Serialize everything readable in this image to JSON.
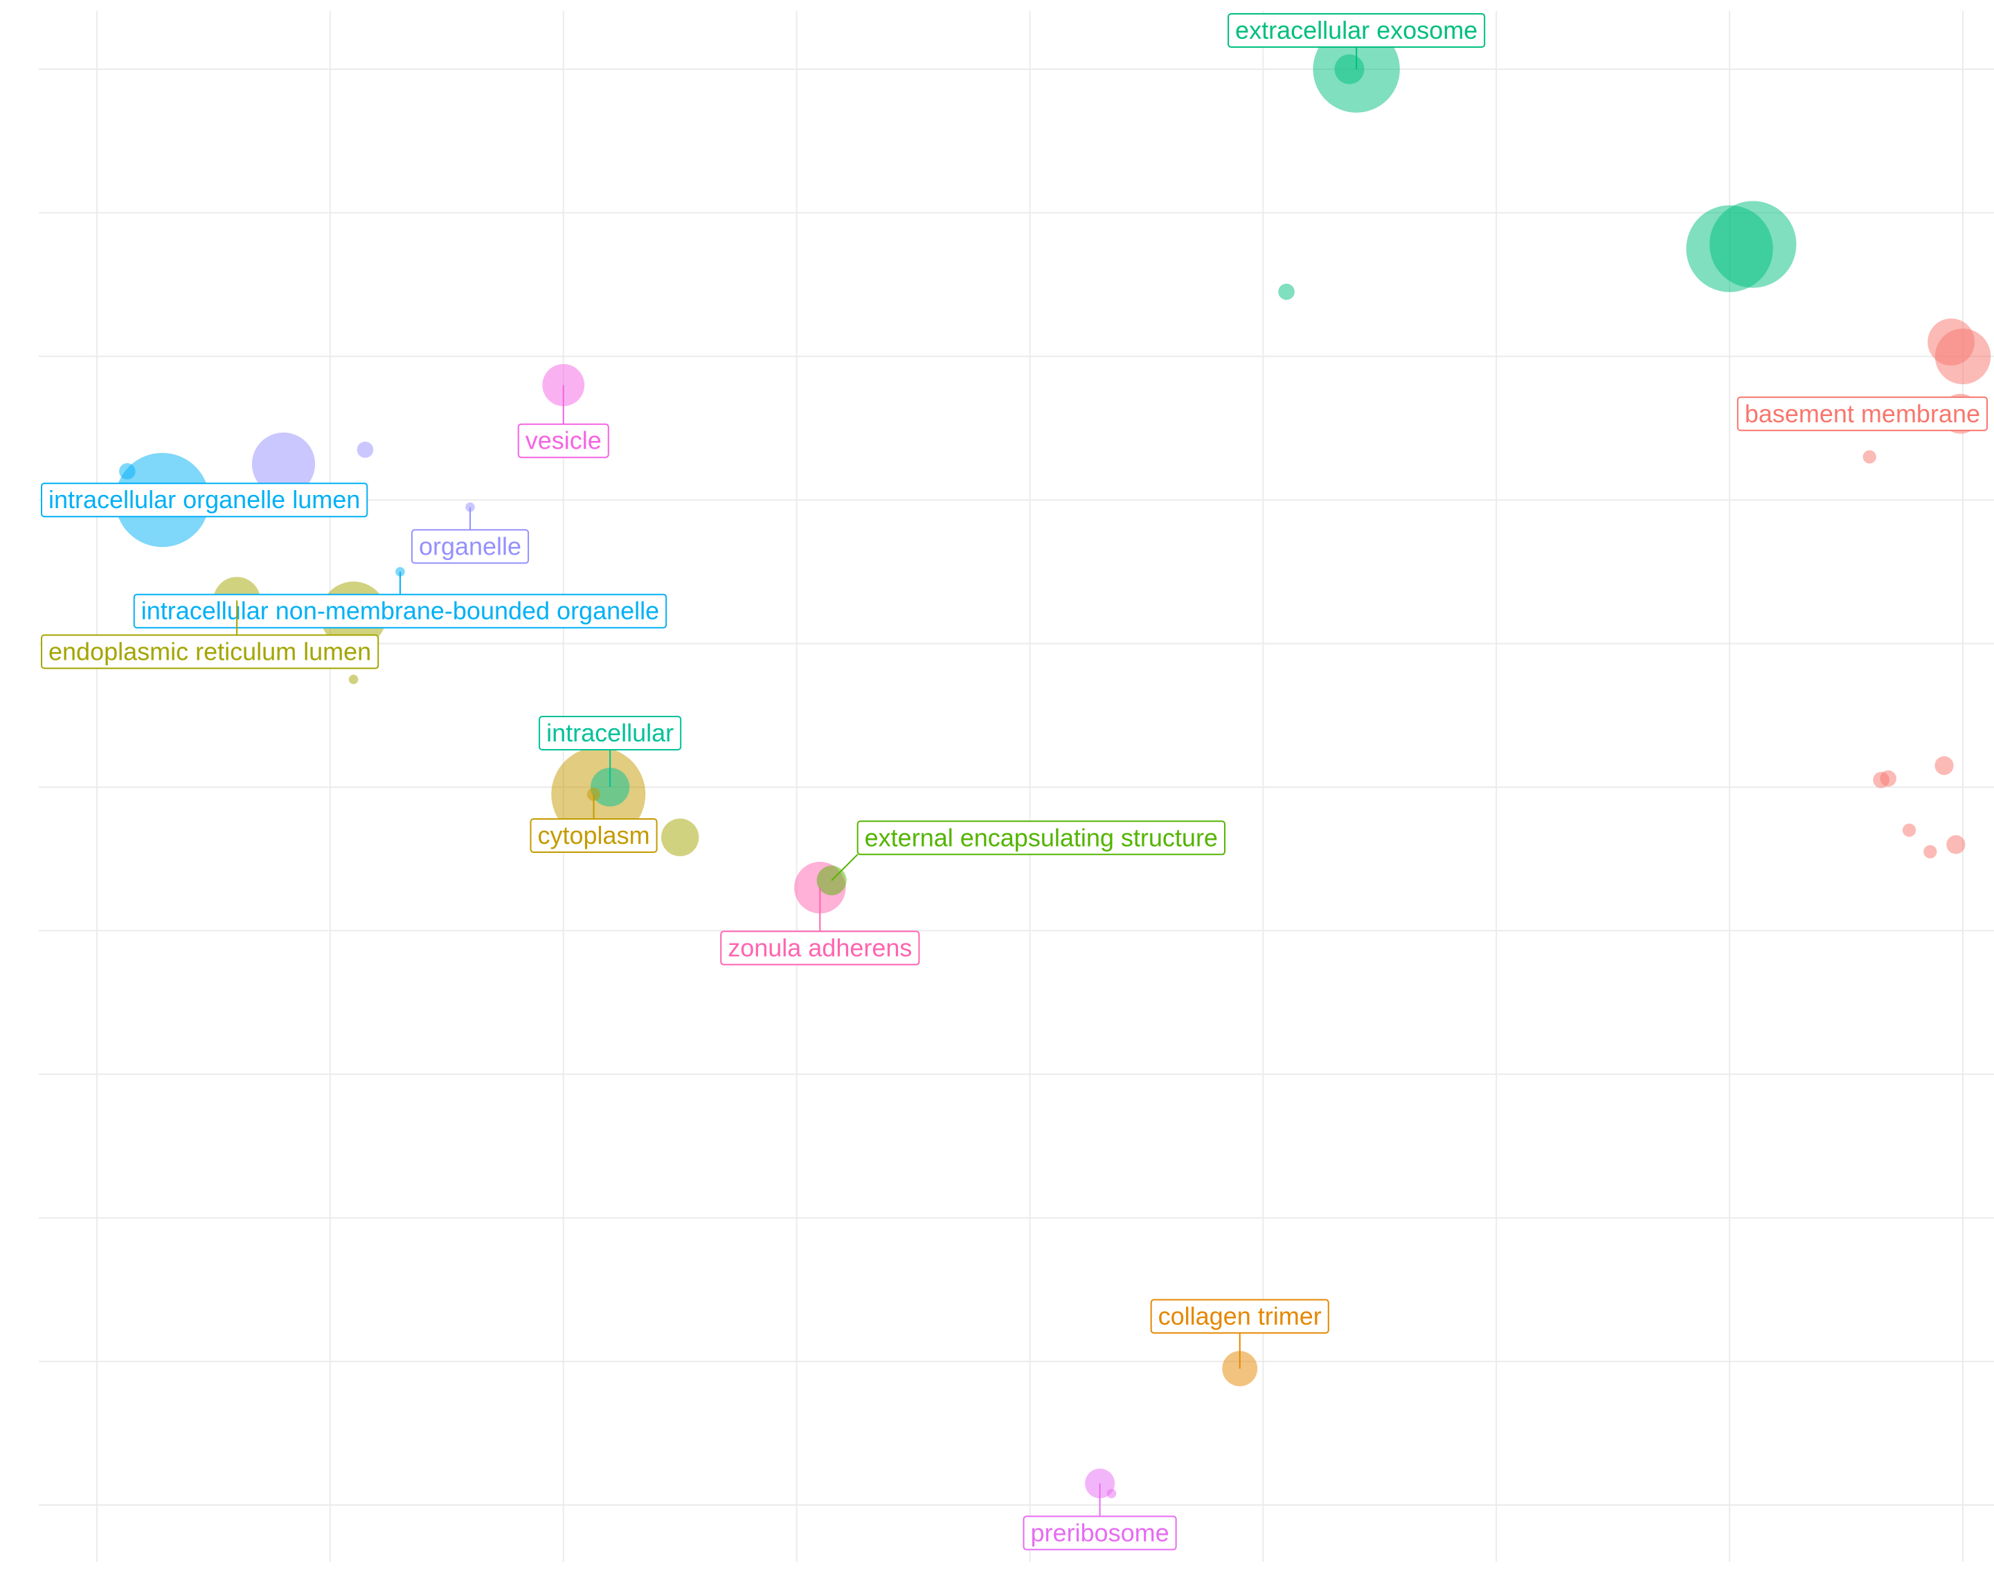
{
  "chart_data": {
    "type": "scatter",
    "title": "",
    "xlabel": "",
    "ylabel": "",
    "xlim": [
      0,
      8.5
    ],
    "ylim": [
      0,
      10.5
    ],
    "grid": true,
    "legend": "none",
    "labels": [
      "extracellular exosome",
      "vesicle",
      "organelle",
      "intracellular organelle lumen",
      "intracellular non-membrane-bounded organelle",
      "endoplasmic reticulum lumen",
      "basement membrane",
      "intracellular",
      "cytoplasm",
      "external encapsulating structure",
      "zonula adherens",
      "collagen trimer",
      "preribosome"
    ],
    "points": [
      {
        "x": 5.4,
        "y": 10.0,
        "size": 0.85,
        "color": "#00BF7D",
        "label": "extracellular exosome"
      },
      {
        "x": 5.37,
        "y": 10.0,
        "size": 0.1,
        "color": "#00BF7D"
      },
      {
        "x": 7.0,
        "y": 8.75,
        "size": 0.85,
        "color": "#00BF7D"
      },
      {
        "x": 7.1,
        "y": 8.78,
        "size": 0.85,
        "color": "#00BF7D"
      },
      {
        "x": 5.1,
        "y": 8.45,
        "size": 0.03,
        "color": "#00BF7D"
      },
      {
        "x": 2.0,
        "y": 7.8,
        "size": 0.2,
        "color": "#F564E3",
        "label": "vesicle"
      },
      {
        "x": 0.8,
        "y": 7.25,
        "size": 0.45,
        "color": "#9590FF"
      },
      {
        "x": 1.15,
        "y": 7.35,
        "size": 0.03,
        "color": "#9590FF"
      },
      {
        "x": 0.95,
        "y": 6.95,
        "size": 0.03,
        "color": "#9590FF"
      },
      {
        "x": 1.6,
        "y": 6.95,
        "size": 0.01,
        "color": "#9590FF",
        "label": "organelle"
      },
      {
        "x": 0.28,
        "y": 7.0,
        "size": 1.0,
        "color": "#00B0F6",
        "label": "intracellular organelle lumen"
      },
      {
        "x": 0.13,
        "y": 7.2,
        "size": 0.03,
        "color": "#00B0F6"
      },
      {
        "x": 1.3,
        "y": 6.5,
        "size": 0.01,
        "color": "#00B0F6",
        "label": "intracellular non-membrane-bounded organelle"
      },
      {
        "x": 0.6,
        "y": 6.3,
        "size": 0.25,
        "color": "#A3A500",
        "label": "endoplasmic reticulum lumen"
      },
      {
        "x": 1.1,
        "y": 6.2,
        "size": 0.5,
        "color": "#A3A500"
      },
      {
        "x": 1.1,
        "y": 5.75,
        "size": 0.01,
        "color": "#A3A500"
      },
      {
        "x": 7.95,
        "y": 8.1,
        "size": 0.25,
        "color": "#F8766D"
      },
      {
        "x": 8.0,
        "y": 8.0,
        "size": 0.35,
        "color": "#F8766D"
      },
      {
        "x": 7.99,
        "y": 7.6,
        "size": 0.18,
        "color": "#F8766D",
        "label": "basement membrane"
      },
      {
        "x": 7.6,
        "y": 7.3,
        "size": 0.02,
        "color": "#F8766D"
      },
      {
        "x": 7.65,
        "y": 5.05,
        "size": 0.03,
        "color": "#F8766D"
      },
      {
        "x": 7.68,
        "y": 5.06,
        "size": 0.03,
        "color": "#F8766D"
      },
      {
        "x": 7.92,
        "y": 5.15,
        "size": 0.04,
        "color": "#F8766D"
      },
      {
        "x": 7.97,
        "y": 4.6,
        "size": 0.04,
        "color": "#F8766D"
      },
      {
        "x": 7.77,
        "y": 4.7,
        "size": 0.02,
        "color": "#F8766D"
      },
      {
        "x": 7.86,
        "y": 4.55,
        "size": 0.02,
        "color": "#F8766D"
      },
      {
        "x": 2.15,
        "y": 4.95,
        "size": 1.0,
        "color": "#C49A00"
      },
      {
        "x": 2.13,
        "y": 4.95,
        "size": 0.02,
        "color": "#C49A00",
        "label": "cytoplasm"
      },
      {
        "x": 2.2,
        "y": 5.0,
        "size": 0.17,
        "color": "#00C19A",
        "label": "intracellular"
      },
      {
        "x": 2.5,
        "y": 4.65,
        "size": 0.16,
        "color": "#A3A500"
      },
      {
        "x": 3.1,
        "y": 4.3,
        "size": 0.3,
        "color": "#FF64B0",
        "label": "zonula adherens"
      },
      {
        "x": 3.15,
        "y": 4.35,
        "size": 0.1,
        "color": "#53B400",
        "label": "external encapsulating structure"
      },
      {
        "x": 4.9,
        "y": 0.95,
        "size": 0.14,
        "color": "#E58700",
        "label": "collagen trimer"
      },
      {
        "x": 4.3,
        "y": 0.15,
        "size": 0.1,
        "color": "#E76BF3",
        "label": "preribosome"
      },
      {
        "x": 4.35,
        "y": 0.08,
        "size": 0.01,
        "color": "#E76BF3"
      }
    ]
  }
}
